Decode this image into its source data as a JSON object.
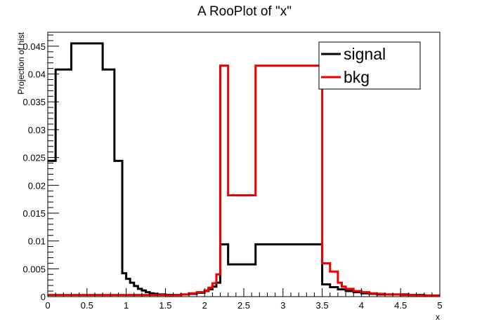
{
  "chart_data": {
    "type": "line",
    "title": "A RooPlot of \"x\"",
    "xlabel": "x",
    "ylabel": "Projection of hist",
    "xlim": [
      0,
      5
    ],
    "ylim": [
      0,
      0.0475
    ],
    "x_ticks": [
      "0",
      "0.5",
      "1",
      "1.5",
      "2",
      "2.5",
      "3",
      "3.5",
      "4",
      "4.5",
      "5"
    ],
    "y_ticks": [
      "0",
      "0.005",
      "0.01",
      "0.015",
      "0.02",
      "0.025",
      "0.03",
      "0.035",
      "0.04",
      "0.045"
    ],
    "legend_position": "top-right",
    "grid": false,
    "series": [
      {
        "name": "signal",
        "color": "#000000",
        "steps": [
          [
            0.0,
            0.0244
          ],
          [
            0.1,
            0.0408
          ],
          [
            0.3,
            0.0455
          ],
          [
            0.7,
            0.0408
          ],
          [
            0.85,
            0.0244
          ],
          [
            0.95,
            0.0042
          ],
          [
            1.0,
            0.0032
          ],
          [
            1.05,
            0.0025
          ],
          [
            1.1,
            0.0019
          ],
          [
            1.15,
            0.0014
          ],
          [
            1.2,
            0.0011
          ],
          [
            1.25,
            0.0008
          ],
          [
            1.3,
            0.0006
          ],
          [
            1.35,
            0.0005
          ],
          [
            1.4,
            0.0004
          ],
          [
            1.5,
            0.0003
          ],
          [
            1.6,
            0.0003
          ],
          [
            1.7,
            0.0004
          ],
          [
            1.8,
            0.0005
          ],
          [
            1.9,
            0.0007
          ],
          [
            2.0,
            0.001
          ],
          [
            2.05,
            0.0013
          ],
          [
            2.1,
            0.0018
          ],
          [
            2.15,
            0.0025
          ],
          [
            2.2,
            0.0094
          ],
          [
            2.3,
            0.0058
          ],
          [
            2.65,
            0.0094
          ],
          [
            3.5,
            0.0022
          ],
          [
            3.6,
            0.0017
          ],
          [
            3.7,
            0.0013
          ],
          [
            3.8,
            0.001
          ],
          [
            3.9,
            0.0008
          ],
          [
            4.0,
            0.0006
          ],
          [
            4.1,
            0.0005
          ],
          [
            4.2,
            0.0004
          ],
          [
            4.4,
            0.0004
          ],
          [
            4.6,
            0.0003
          ],
          [
            4.8,
            0.0002
          ]
        ],
        "end_x": 5.0
      },
      {
        "name": "bkg",
        "color": "#ee0000",
        "steps": [
          [
            0.0,
            0.0003
          ],
          [
            1.5,
            0.0002
          ],
          [
            1.6,
            0.0003
          ],
          [
            1.7,
            0.0004
          ],
          [
            1.8,
            0.0006
          ],
          [
            1.9,
            0.0008
          ],
          [
            2.0,
            0.0011
          ],
          [
            2.05,
            0.0016
          ],
          [
            2.1,
            0.0024
          ],
          [
            2.15,
            0.004
          ],
          [
            2.2,
            0.0415
          ],
          [
            2.3,
            0.0182
          ],
          [
            2.65,
            0.0415
          ],
          [
            3.5,
            0.006
          ],
          [
            3.6,
            0.0045
          ],
          [
            3.7,
            0.0025
          ],
          [
            3.75,
            0.0018
          ],
          [
            3.8,
            0.0014
          ],
          [
            3.9,
            0.001
          ],
          [
            4.0,
            0.0008
          ],
          [
            4.1,
            0.0006
          ],
          [
            4.2,
            0.0005
          ],
          [
            4.3,
            0.0004
          ],
          [
            4.5,
            0.0003
          ],
          [
            4.7,
            0.0002
          ]
        ],
        "end_x": 5.0
      }
    ]
  }
}
